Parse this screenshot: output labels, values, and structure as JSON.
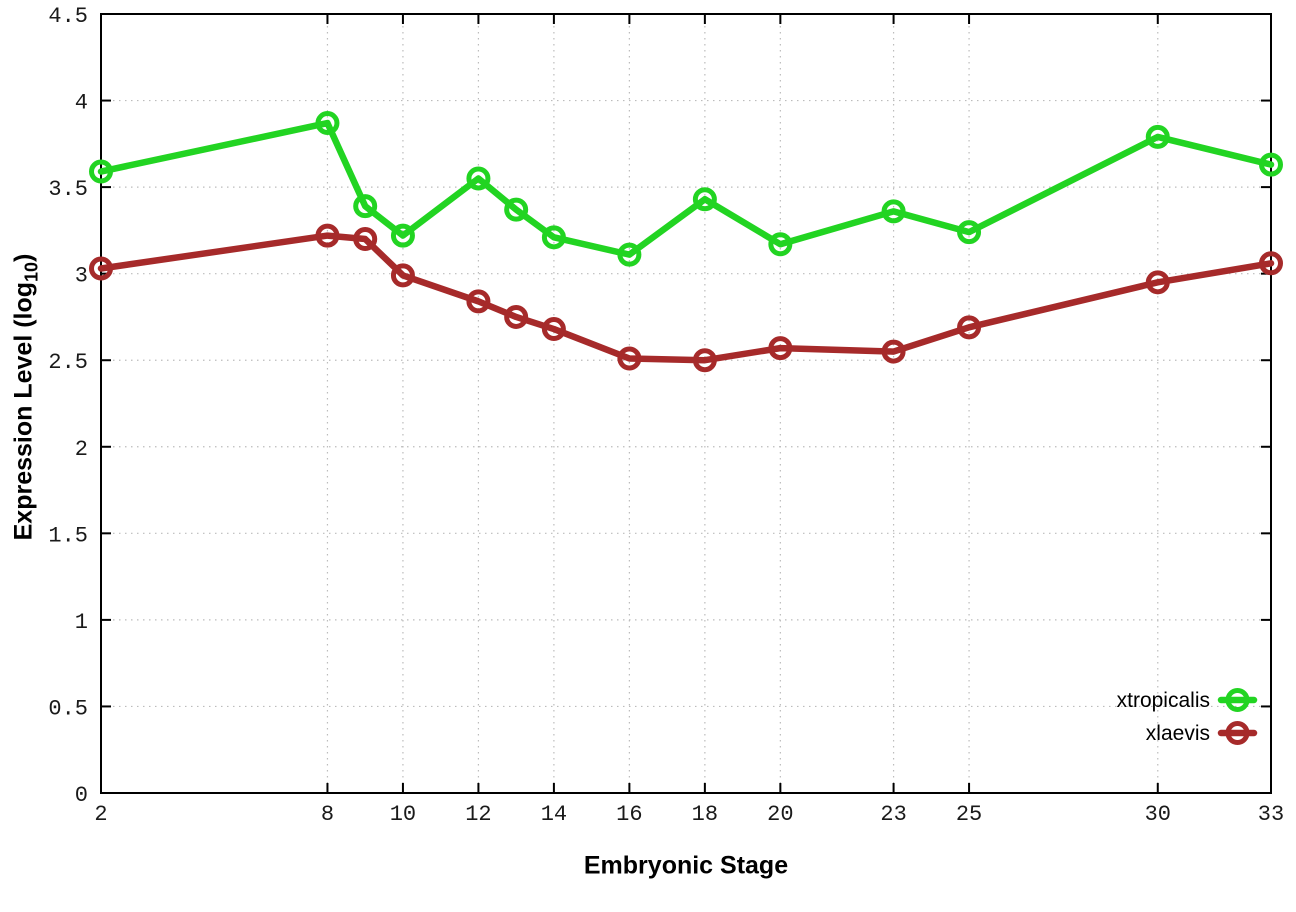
{
  "chart_data": {
    "type": "line",
    "title": "",
    "xlabel": "Embryonic Stage",
    "ylabel": "Expression Level (log10)",
    "ylabel_parts": {
      "prefix": "Expression Level (log",
      "sub": "10",
      "suffix": ")"
    },
    "x": [
      2,
      8,
      9,
      10,
      12,
      13,
      14,
      16,
      18,
      20,
      23,
      25,
      30,
      33
    ],
    "xlim": [
      2,
      33
    ],
    "ylim": [
      0,
      4.5
    ],
    "xticks": [
      2,
      8,
      10,
      12,
      14,
      16,
      18,
      20,
      23,
      25,
      30,
      33
    ],
    "xtick_labels": [
      "2",
      "8",
      "10",
      "12",
      "14",
      "16",
      "18",
      "20",
      "23",
      "25",
      "30",
      "33"
    ],
    "yticks": [
      0,
      0.5,
      1,
      1.5,
      2,
      2.5,
      3,
      3.5,
      4,
      4.5
    ],
    "ytick_labels": [
      "0",
      "0.5",
      "1",
      "1.5",
      "2",
      "2.5",
      "3",
      "3.5",
      "4",
      "4.5"
    ],
    "grid": true,
    "legend_position": "inside-bottom-right",
    "series": [
      {
        "name": "xtropicalis",
        "color": "#22d422",
        "marker": "open-circle",
        "values": [
          3.59,
          3.87,
          3.39,
          3.22,
          3.55,
          3.37,
          3.21,
          3.11,
          3.43,
          3.17,
          3.36,
          3.24,
          3.79,
          3.63
        ]
      },
      {
        "name": "xlaevis",
        "color": "#a62a2a",
        "marker": "open-circle",
        "values": [
          3.03,
          3.22,
          3.2,
          2.99,
          2.84,
          2.75,
          2.68,
          2.51,
          2.5,
          2.57,
          2.55,
          2.69,
          2.95,
          3.06
        ]
      }
    ],
    "colors": {
      "background": "#ffffff",
      "axis": "#000000",
      "grid": "#bcbcbc",
      "tick_text": "#1a1a1a"
    }
  }
}
